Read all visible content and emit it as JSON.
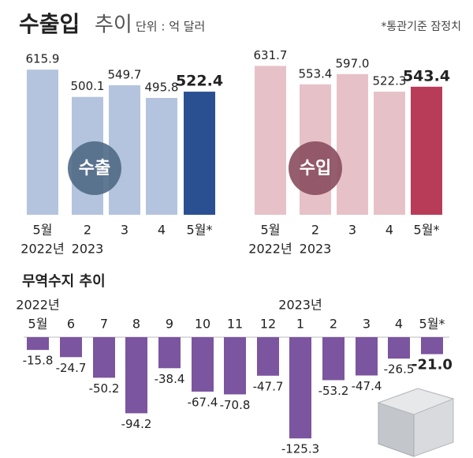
{
  "header": {
    "title_bold": "수출입",
    "title_light": "추이",
    "unit": "단위 : 억 달러",
    "note": "*통관기준 잠정치"
  },
  "chart_data": [
    {
      "type": "bar",
      "badge": "수출",
      "badge_color": "#4f6a86",
      "categories": [
        "5월",
        "2",
        "3",
        "4",
        "5월*"
      ],
      "year_labels": [
        "2022년",
        "2023",
        null,
        null,
        null
      ],
      "values": [
        615.9,
        500.1,
        549.7,
        495.8,
        522.4
      ],
      "value_labels": [
        "615.9",
        "500.1",
        "549.7",
        "495.8",
        "522.4"
      ],
      "colors": [
        "#b4c4de",
        "#b4c4de",
        "#b4c4de",
        "#b4c4de",
        "#2a5092"
      ],
      "ylim": [
        0,
        650
      ]
    },
    {
      "type": "bar",
      "badge": "수입",
      "badge_color": "#8a4c5e",
      "categories": [
        "5월",
        "2",
        "3",
        "4",
        "5월*"
      ],
      "year_labels": [
        "2022년",
        "2023",
        null,
        null,
        null
      ],
      "values": [
        631.7,
        553.4,
        597.0,
        522.3,
        543.4
      ],
      "value_labels": [
        "631.7",
        "553.4",
        "597.0",
        "522.3",
        "543.4"
      ],
      "colors": [
        "#e6c2c8",
        "#e6c2c8",
        "#e6c2c8",
        "#e6c2c8",
        "#b83c57"
      ],
      "ylim": [
        0,
        650
      ]
    },
    {
      "type": "bar",
      "title": "무역수지 추이",
      "categories": [
        "5월",
        "6",
        "7",
        "8",
        "9",
        "10",
        "11",
        "12",
        "1",
        "2",
        "3",
        "4",
        "5월*"
      ],
      "year_labels": [
        "2022년",
        null,
        null,
        null,
        null,
        null,
        null,
        null,
        "2023년",
        null,
        null,
        null,
        null
      ],
      "values": [
        -15.8,
        -24.7,
        -50.2,
        -94.2,
        -38.4,
        -67.4,
        -70.8,
        -47.7,
        -125.3,
        -53.2,
        -47.4,
        -26.5,
        -21.0
      ],
      "value_labels": [
        "-15.8",
        "-24.7",
        "-50.2",
        "-94.2",
        "-38.4",
        "-67.4",
        "-70.8",
        "-47.7",
        "-125.3",
        "-53.2",
        "-47.4",
        "-26.5",
        "-21.0"
      ],
      "color": "#7b559f",
      "ylim": [
        -130,
        0
      ]
    }
  ]
}
